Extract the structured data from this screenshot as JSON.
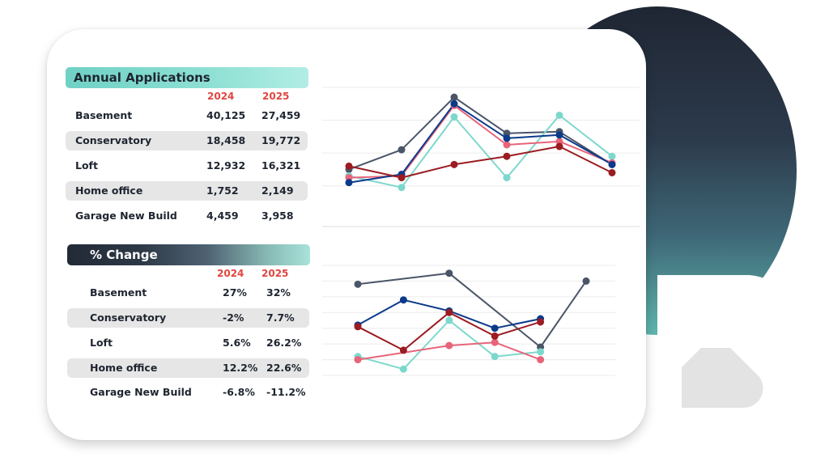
{
  "colors": {
    "accent_teal": "#7dd8cc",
    "accent_dark": "#222a36",
    "year_label": "#e0463f",
    "series": [
      "#4a5568",
      "#7dd8cc",
      "#e8647a",
      "#0b3a8a",
      "#9b1c22"
    ]
  },
  "applications": {
    "title": "Annual Applications",
    "years": [
      "2024",
      "2025"
    ],
    "rows": [
      {
        "label": "Basement",
        "v2024": "40,125",
        "v2025": "27,459"
      },
      {
        "label": "Conservatory",
        "v2024": "18,458",
        "v2025": "19,772"
      },
      {
        "label": "Loft",
        "v2024": "12,932",
        "v2025": "16,321"
      },
      {
        "label": "Home office",
        "v2024": "1,752",
        "v2025": "2,149"
      },
      {
        "label": "Garage New Build",
        "v2024": "4,459",
        "v2025": "3,958"
      }
    ]
  },
  "change": {
    "title": "% Change",
    "years": [
      "2024",
      "2025"
    ],
    "rows": [
      {
        "label": "Basement",
        "v2024": "27%",
        "v2025": "32%"
      },
      {
        "label": "Conservatory",
        "v2024": "-2%",
        "v2025": "7.7%"
      },
      {
        "label": "Loft",
        "v2024": "5.6%",
        "v2025": "26.2%"
      },
      {
        "label": "Home office",
        "v2024": "12.2%",
        "v2025": "22.6%"
      },
      {
        "label": "Garage New Build",
        "v2024": "-6.8%",
        "v2025": "-11.2%"
      }
    ]
  },
  "chart_data": [
    {
      "type": "line",
      "title": "",
      "xlabel": "",
      "ylabel": "",
      "x": [
        1,
        2,
        3,
        4,
        5,
        6
      ],
      "ylim": [
        0,
        7
      ],
      "grid": true,
      "legend": "none",
      "series": [
        {
          "color": "#4a5568",
          "values": [
            2.0,
            3.2,
            6.4,
            4.2,
            4.3,
            2.3
          ]
        },
        {
          "color": "#7dd8cc",
          "values": [
            1.6,
            0.9,
            5.2,
            1.5,
            5.3,
            2.8
          ]
        },
        {
          "color": "#e8647a",
          "values": [
            1.5,
            1.6,
            5.9,
            3.5,
            3.7,
            2.4
          ]
        },
        {
          "color": "#0b3a8a",
          "values": [
            1.2,
            1.7,
            6.0,
            3.9,
            4.1,
            2.3
          ]
        },
        {
          "color": "#9b1c22",
          "values": [
            2.2,
            1.5,
            2.3,
            2.8,
            3.4,
            1.8
          ]
        }
      ]
    },
    {
      "type": "line",
      "title": "",
      "xlabel": "",
      "ylabel": "",
      "x": [
        1,
        2,
        3,
        4,
        5,
        6
      ],
      "ylim": [
        0,
        7
      ],
      "grid": true,
      "legend": "none",
      "series": [
        {
          "color": "#4a5568",
          "x": [
            1,
            3,
            5,
            6
          ],
          "values": [
            5.8,
            6.5,
            1.8,
            6.0
          ]
        },
        {
          "color": "#7dd8cc",
          "x": [
            1,
            2,
            3,
            4,
            5
          ],
          "values": [
            1.2,
            0.4,
            3.5,
            1.2,
            1.5
          ]
        },
        {
          "color": "#e8647a",
          "x": [
            1,
            3,
            4,
            5
          ],
          "values": [
            1.0,
            1.9,
            2.1,
            1.0
          ]
        },
        {
          "color": "#0b3a8a",
          "x": [
            1,
            2,
            3,
            4,
            5
          ],
          "values": [
            3.2,
            4.8,
            4.1,
            3.0,
            3.6
          ]
        },
        {
          "color": "#9b1c22",
          "x": [
            1,
            2,
            3,
            4,
            5
          ],
          "values": [
            3.1,
            1.6,
            4.0,
            2.5,
            3.4
          ]
        }
      ]
    }
  ]
}
